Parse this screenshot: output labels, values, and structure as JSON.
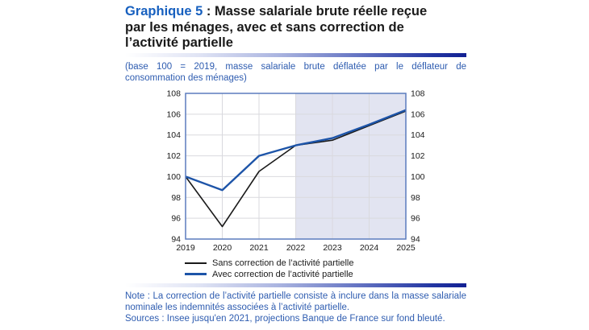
{
  "figure": {
    "label": "Graphique 5",
    "title_rest": " : Masse salariale brute réelle reçue par les ménages, avec et sans correction de l’activité partielle",
    "subtitle": "(base 100 = 2019, masse salariale brute déflatée par le déflateur de consommation des ménages)"
  },
  "chart_data": {
    "type": "line",
    "x": [
      2019,
      2020,
      2021,
      2022,
      2023,
      2024,
      2025
    ],
    "series": [
      {
        "name": "Sans correction de l’activité partielle",
        "color": "#1a1a1a",
        "stroke_width": 1.6,
        "values": [
          100,
          95.2,
          100.5,
          103.0,
          103.5,
          104.9,
          106.3
        ]
      },
      {
        "name": "Avec correction de l’activité partielle",
        "color": "#1d54a8",
        "stroke_width": 2.4,
        "values": [
          100,
          98.7,
          102.0,
          103.0,
          103.7,
          105.0,
          106.4
        ]
      }
    ],
    "ylim": [
      94,
      108
    ],
    "ytick_step": 2,
    "yticks": [
      94,
      96,
      98,
      100,
      102,
      104,
      106,
      108
    ],
    "y_axis_both_sides": true,
    "grid": true,
    "shaded_region": {
      "from": 2022,
      "to": 2025,
      "color": "#e2e4f1",
      "meaning": "projections Banque de France sur fond bleuté"
    },
    "frame_color": "#5b7cbe",
    "grid_color": "#d9d9de",
    "tick_label_color": "#1a1a1a",
    "legend_position": "bottom"
  },
  "notes": {
    "note": "Note : La correction de l’activité partielle consiste à inclure dans la masse salariale nominale les indemnités associées à l’activité partielle.",
    "sources": "Sources : Insee jusqu'en 2021, projections Banque de France sur fond bleuté."
  }
}
